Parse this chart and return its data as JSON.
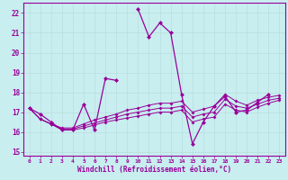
{
  "xlabel": "Windchill (Refroidissement éolien,°C)",
  "background_color": "#c8eef0",
  "line_color": "#990099",
  "grid_color": "#aadddd",
  "xlim": [
    -0.5,
    23.5
  ],
  "ylim": [
    14.8,
    22.5
  ],
  "xticks": [
    0,
    1,
    2,
    3,
    4,
    5,
    6,
    7,
    8,
    9,
    10,
    11,
    12,
    13,
    14,
    15,
    16,
    17,
    18,
    19,
    20,
    21,
    22,
    23
  ],
  "yticks": [
    15,
    16,
    17,
    18,
    19,
    20,
    21,
    22
  ],
  "series_main": [
    17.2,
    16.9,
    16.5,
    16.1,
    16.1,
    17.4,
    16.1,
    18.7,
    18.6,
    null,
    22.2,
    20.8,
    21.5,
    21.0,
    17.9,
    15.4,
    16.5,
    17.3,
    17.8,
    17.0,
    17.1,
    17.5,
    17.9,
    null
  ],
  "series_trend": [
    [
      17.2,
      16.65,
      16.4,
      16.1,
      16.1,
      16.2,
      16.35,
      16.5,
      16.6,
      16.7,
      16.8,
      16.9,
      17.0,
      17.0,
      17.1,
      16.5,
      16.65,
      16.75,
      17.4,
      17.1,
      17.0,
      17.25,
      17.45,
      17.6
    ],
    [
      17.2,
      16.65,
      16.4,
      16.15,
      16.15,
      16.3,
      16.45,
      16.6,
      16.75,
      16.9,
      17.0,
      17.1,
      17.2,
      17.2,
      17.3,
      16.75,
      16.9,
      17.0,
      17.65,
      17.3,
      17.2,
      17.4,
      17.6,
      17.7
    ],
    [
      17.2,
      16.65,
      16.4,
      16.2,
      16.2,
      16.4,
      16.6,
      16.75,
      16.9,
      17.1,
      17.2,
      17.35,
      17.45,
      17.45,
      17.55,
      17.0,
      17.15,
      17.3,
      17.9,
      17.55,
      17.35,
      17.6,
      17.75,
      17.85
    ]
  ]
}
